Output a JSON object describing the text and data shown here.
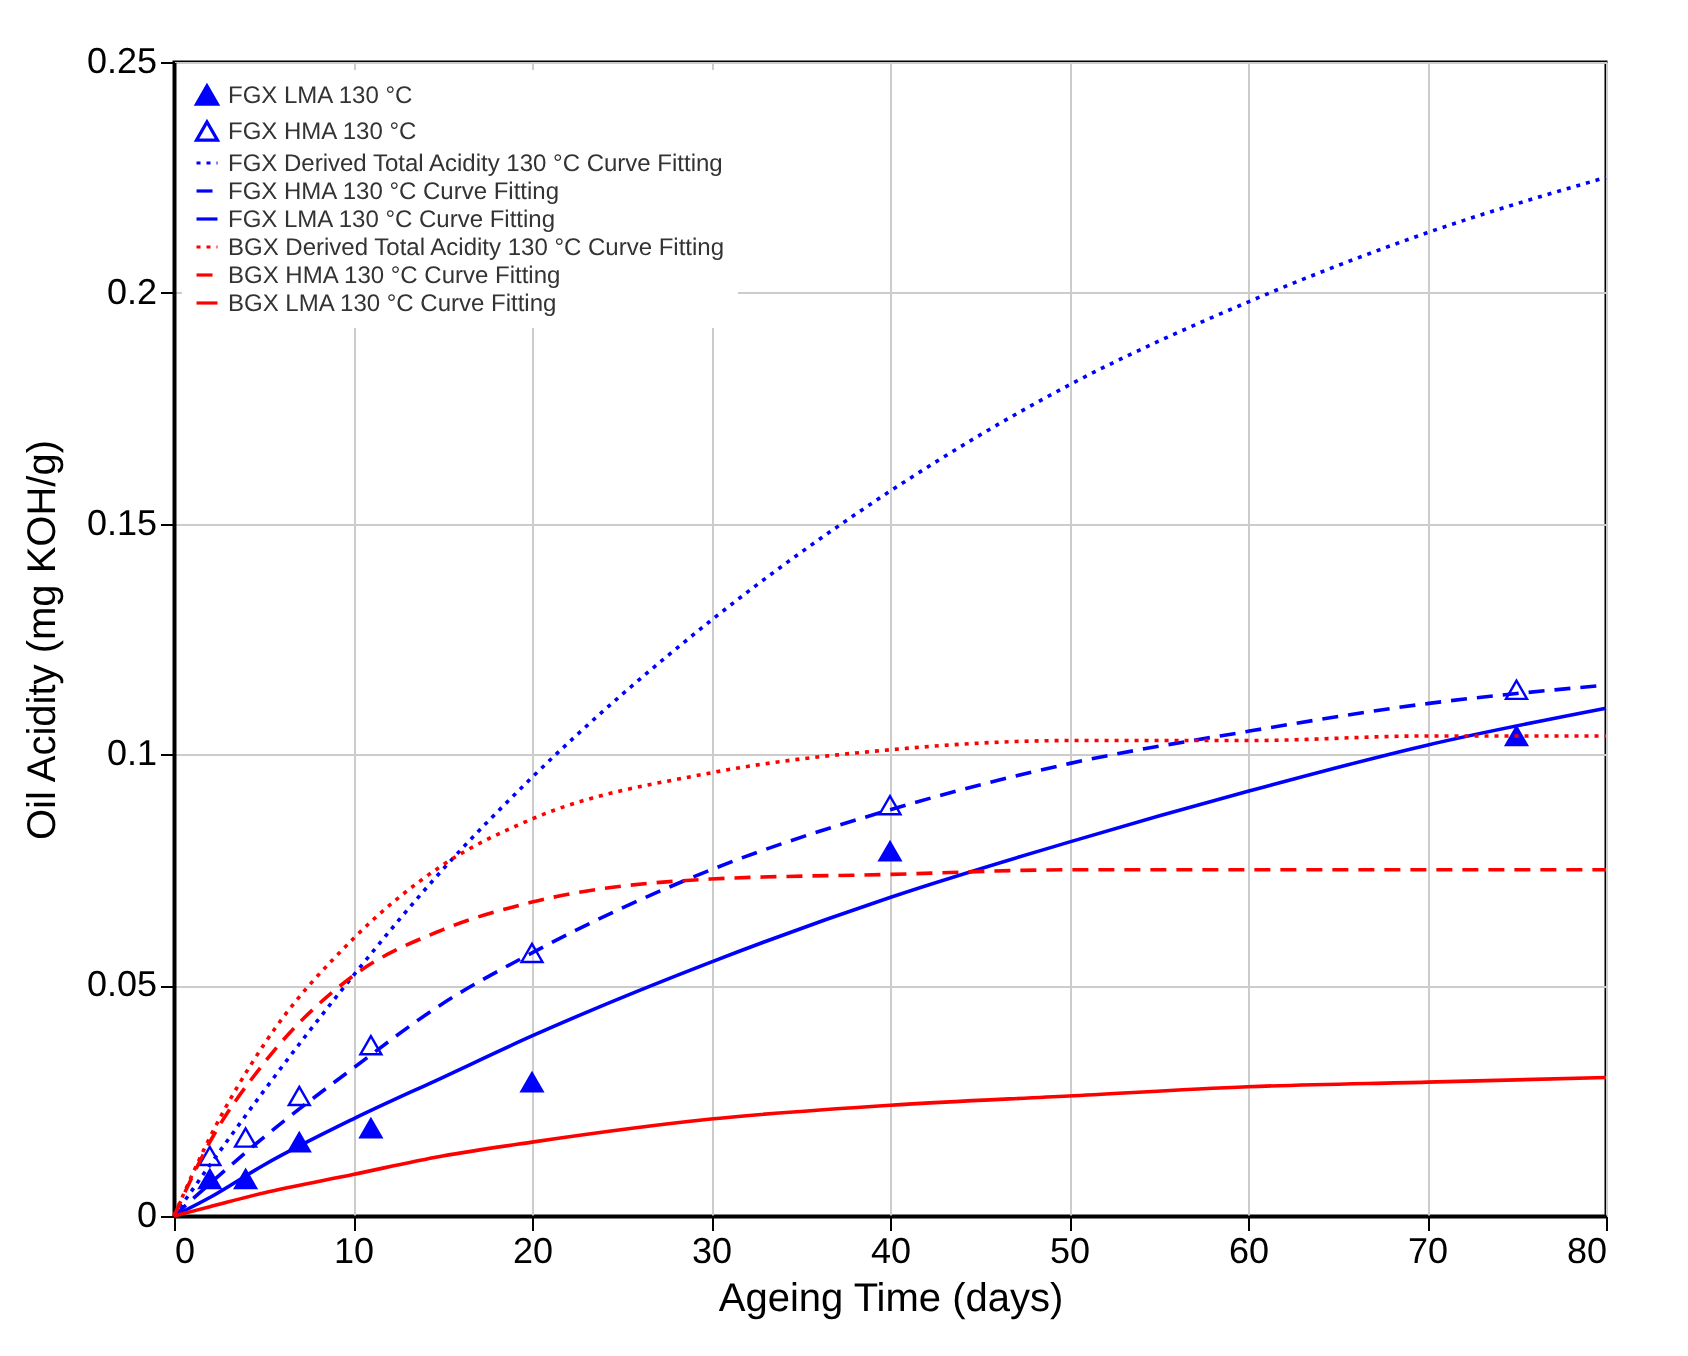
{
  "chart_data": {
    "type": "line",
    "xlabel": "Ageing Time (days)",
    "ylabel": "Oil Acidity (mg KOH/g)",
    "xlim": [
      0,
      80
    ],
    "ylim": [
      0,
      0.25
    ],
    "xticks": [
      0,
      10,
      20,
      30,
      40,
      50,
      60,
      70,
      80
    ],
    "yticks": [
      0,
      0.05,
      0.1,
      0.15,
      0.2,
      0.25
    ],
    "grid": true,
    "legend": "top left",
    "series": [
      {
        "name": "FGX LMA 130 °C",
        "type": "scatter",
        "marker": "triangle",
        "color": "#0000ff",
        "x": [
          2,
          4,
          7,
          11,
          20,
          40,
          75
        ],
        "values": [
          0.008,
          0.008,
          0.016,
          0.019,
          0.029,
          0.079,
          0.104
        ]
      },
      {
        "name": "FGX HMA 130 °C",
        "type": "scatter",
        "marker": "triangle-open",
        "color": "#0000ff",
        "x": [
          2,
          4,
          7,
          11,
          20,
          40,
          75
        ],
        "values": [
          0.013,
          0.017,
          0.026,
          0.037,
          0.057,
          0.089,
          0.114
        ]
      },
      {
        "name": "FGX Derived Total Acidity 130 °C Curve Fitting",
        "type": "line",
        "line_style": "dotted",
        "marker": "none",
        "color": "#0000ff",
        "x": [
          0,
          2,
          5,
          10,
          15,
          20,
          30,
          40,
          50,
          60,
          70,
          80
        ],
        "values": [
          0,
          0.011,
          0.027,
          0.052,
          0.075,
          0.095,
          0.129,
          0.157,
          0.18,
          0.198,
          0.213,
          0.225
        ]
      },
      {
        "name": "FGX HMA 130 °C Curve Fitting",
        "type": "line",
        "line_style": "dashed",
        "marker": "none",
        "color": "#0000ff",
        "x": [
          0,
          2,
          5,
          10,
          15,
          20,
          30,
          40,
          50,
          60,
          70,
          80
        ],
        "values": [
          0,
          0.007,
          0.017,
          0.032,
          0.046,
          0.057,
          0.075,
          0.088,
          0.098,
          0.105,
          0.111,
          0.115
        ]
      },
      {
        "name": "FGX LMA 130 °C Curve Fitting",
        "type": "line",
        "line_style": "solid",
        "marker": "none",
        "color": "#0000ff",
        "x": [
          0,
          2,
          5,
          10,
          15,
          20,
          30,
          40,
          50,
          60,
          70,
          80
        ],
        "values": [
          0,
          0.004,
          0.011,
          0.021,
          0.03,
          0.039,
          0.055,
          0.069,
          0.081,
          0.092,
          0.102,
          0.11
        ]
      },
      {
        "name": "BGX Derived Total Acidity 130 °C Curve Fitting",
        "type": "line",
        "line_style": "dotted",
        "marker": "none",
        "color": "#ff0000",
        "x": [
          0,
          2,
          5,
          10,
          15,
          20,
          30,
          40,
          50,
          60,
          70,
          80
        ],
        "values": [
          0,
          0.017,
          0.037,
          0.06,
          0.076,
          0.086,
          0.096,
          0.101,
          0.103,
          0.103,
          0.104,
          0.104
        ]
      },
      {
        "name": "BGX HMA 130 °C Curve Fitting",
        "type": "line",
        "line_style": "dashed",
        "marker": "none",
        "color": "#ff0000",
        "x": [
          0,
          2,
          5,
          10,
          15,
          20,
          30,
          40,
          50,
          60,
          70,
          80
        ],
        "values": [
          0,
          0.016,
          0.033,
          0.052,
          0.062,
          0.068,
          0.073,
          0.074,
          0.075,
          0.075,
          0.075,
          0.075
        ]
      },
      {
        "name": "BGX LMA 130 °C Curve Fitting",
        "type": "line",
        "line_style": "solid",
        "marker": "none",
        "color": "#ff0000",
        "x": [
          0,
          2,
          5,
          10,
          15,
          20,
          30,
          40,
          50,
          60,
          70,
          80
        ],
        "values": [
          0,
          0.002,
          0.005,
          0.009,
          0.013,
          0.016,
          0.021,
          0.024,
          0.026,
          0.028,
          0.029,
          0.03
        ]
      }
    ]
  }
}
